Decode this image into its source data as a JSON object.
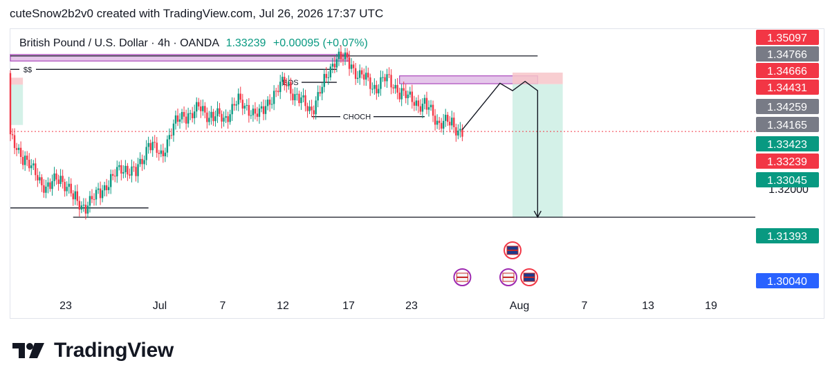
{
  "header": {
    "attribution": "cuteSnow2b2v0 created with TradingView.com, Jul 26, 2026 17:37 UTC"
  },
  "legend": {
    "symbol": "British Pound / U.S. Dollar · 4h · OANDA",
    "last": "1.33239",
    "change": "+0.00095 (+0.07%)"
  },
  "brand": {
    "name": "TradingView"
  },
  "colors": {
    "up": "#089981",
    "down": "#f23645",
    "grey": "#787b86",
    "blue": "#2962ff",
    "zone": "#e1bee7",
    "zoneBorder": "#9c27b0",
    "stopZone": "#f7c6c9",
    "targetZone": "#cdeee4"
  },
  "chart_data": {
    "type": "candlestick",
    "title": "British Pound / U.S. Dollar · 4h · OANDA",
    "ylim": [
      1.2975,
      1.3545
    ],
    "y_ticks": [
      1.31,
      1.32
    ],
    "x_ticks": [
      "23",
      "Jul",
      "7",
      "12",
      "17",
      "23",
      "Aug",
      "7",
      "13",
      "19"
    ],
    "price_badges": [
      {
        "label": "1.35097",
        "value": 1.35097,
        "color": "#f23645"
      },
      {
        "label": "1.34766",
        "value": 1.34766,
        "color": "#787b86"
      },
      {
        "label": "1.34666",
        "value": 1.34666,
        "color": "#f23645"
      },
      {
        "label": "1.34431",
        "value": 1.34431,
        "color": "#f23645"
      },
      {
        "label": "1.34259",
        "value": 1.34259,
        "color": "#787b86"
      },
      {
        "label": "1.34165",
        "value": 1.34165,
        "color": "#787b86"
      },
      {
        "label": "1.33423",
        "value": 1.33423,
        "color": "#089981"
      },
      {
        "label": "1.33239",
        "value": 1.33239,
        "color": "#f23645"
      },
      {
        "label": "1.33045",
        "value": 1.33045,
        "color": "#089981"
      },
      {
        "label": "1.31393",
        "value": 1.31393,
        "color": "#089981"
      },
      {
        "label": "1.30040",
        "value": 1.3004,
        "color": "#2962ff"
      }
    ],
    "price_path": [
      [
        "Jun 19",
        1.345
      ],
      [
        "Jun 19",
        1.331
      ],
      [
        "Jun 20",
        1.327
      ],
      [
        "Jun 21",
        1.323
      ],
      [
        "Jun 22",
        1.32
      ],
      [
        "Jun 23",
        1.323
      ],
      [
        "Jun 24",
        1.318
      ],
      [
        "Jun 25",
        1.316
      ],
      [
        "Jun 26",
        1.319
      ],
      [
        "Jun 27",
        1.322
      ],
      [
        "Jun 28",
        1.325
      ],
      [
        "Jun 29",
        1.323
      ],
      [
        "Jun 30",
        1.33
      ],
      [
        "Jul 1",
        1.327
      ],
      [
        "Jul 2",
        1.334
      ],
      [
        "Jul 3",
        1.336
      ],
      [
        "Jul 4",
        1.337
      ],
      [
        "Jul 5",
        1.336
      ],
      [
        "Jul 6",
        1.335
      ],
      [
        "Jul 7",
        1.339
      ],
      [
        "Jul 8",
        1.337
      ],
      [
        "Jul 9",
        1.336
      ],
      [
        "Jul 10",
        1.341
      ],
      [
        "Jul 11",
        1.343
      ],
      [
        "Jul 12",
        1.339
      ],
      [
        "Jul 13",
        1.337
      ],
      [
        "Jul 14",
        1.343
      ],
      [
        "Jul 15",
        1.349
      ],
      [
        "Jul 16",
        1.347
      ],
      [
        "Jul 17",
        1.344
      ],
      [
        "Jul 18",
        1.342
      ],
      [
        "Jul 19",
        1.344
      ],
      [
        "Jul 20",
        1.341
      ],
      [
        "Jul 21",
        1.339
      ],
      [
        "Jul 22",
        1.338
      ],
      [
        "Jul 23",
        1.335
      ],
      [
        "Jul 24",
        1.334
      ],
      [
        "Jul 25",
        1.3324
      ]
    ],
    "zones": [
      {
        "kind": "supply",
        "x0": "Jun 19",
        "x1": "Jul 16",
        "y_top": 1.349,
        "y_bottom": 1.3476
      },
      {
        "kind": "supply",
        "x0": "Jul 20",
        "x1": "Jul 31",
        "y_top": 1.3444,
        "y_bottom": 1.3427
      },
      {
        "kind": "stop",
        "x0": "Jun 19",
        "x1": "Jun 20",
        "y_top": 1.344,
        "y_bottom": 1.3425
      },
      {
        "kind": "target",
        "x0": "Jun 19",
        "x1": "Jun 20",
        "y_top": 1.3425,
        "y_bottom": 1.3338
      },
      {
        "kind": "stop",
        "x0": "Jul 29",
        "x1": "Aug 2",
        "y_top": 1.3451,
        "y_bottom": 1.3426
      },
      {
        "kind": "target",
        "x0": "Jul 29",
        "x1": "Aug 2",
        "y_top": 1.3426,
        "y_bottom": 1.3139
      }
    ],
    "annotations": [
      {
        "text": "$$",
        "y": 1.3458
      },
      {
        "text": "BOS",
        "y": 1.343
      },
      {
        "text": "CHOCH",
        "y": 1.3356
      }
    ],
    "levels": [
      {
        "x0": "Jun 19",
        "x1": "Jul 31",
        "y": 1.3487
      },
      {
        "x0": "Jun 19",
        "x1": "Jul 15",
        "y": 1.3458
      },
      {
        "x0": "Jul 12",
        "x1": "Jul 15",
        "y": 1.343
      },
      {
        "x0": "Jul 13",
        "x1": "Jul 22",
        "y": 1.3356
      },
      {
        "x0": "Jun 19",
        "x1": "Jun 30",
        "y": 1.3159
      },
      {
        "x0": "Jun 24",
        "x1": "Aug 31",
        "y": 1.3139
      },
      {
        "x0": "Jun 19",
        "x1": "Aug 31",
        "y": 1.3324
      }
    ],
    "projection": [
      [
        "Jul 25",
        1.3328
      ],
      [
        "Jul 28",
        1.3428
      ],
      [
        "Jul 29",
        1.3412
      ],
      [
        "Jul 30",
        1.3432
      ],
      [
        "Jul 31",
        1.3412
      ],
      [
        "Jul 31",
        1.3139
      ]
    ],
    "events": [
      {
        "date": "Jul 25",
        "country": "US"
      },
      {
        "date": "Jul 29",
        "country": "UK"
      },
      {
        "date": "Jul 29",
        "country": "US"
      },
      {
        "date": "Jul 30",
        "country": "UK"
      }
    ]
  }
}
